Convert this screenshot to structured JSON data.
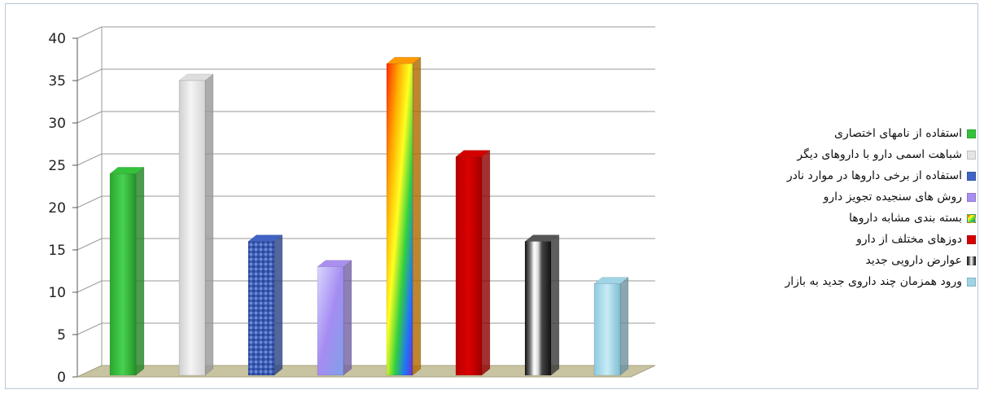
{
  "chart_data": {
    "type": "bar",
    "style": "3d-columns",
    "ylim": [
      0,
      40
    ],
    "yticks": [
      0,
      5,
      10,
      15,
      20,
      25,
      30,
      35,
      40
    ],
    "grid": true,
    "legend_position": "right",
    "series": [
      {
        "name": "استفاده از نامهای اختصاری",
        "value": 24,
        "color": "#33c23a",
        "icon": "green-swatch"
      },
      {
        "name": "شباهت اسمی دارو با داروهای دیگر",
        "value": 35,
        "color": "#dedede",
        "icon": "marble-swatch"
      },
      {
        "name": "استفاده از برخی داروها در موارد نادر",
        "value": 16,
        "color": "#3f63c4",
        "icon": "blue-pattern-swatch"
      },
      {
        "name": "روش های سنجیده تجویز دارو",
        "value": 13,
        "color": "#a98ff0",
        "icon": "lavender-swatch"
      },
      {
        "name": "بسته بندی مشابه داروها",
        "value": 37,
        "color": "#ff9a00",
        "icon": "rainbow-swatch"
      },
      {
        "name": "دوزهای مختلف از دارو",
        "value": 26,
        "color": "#d40000",
        "icon": "red-swatch"
      },
      {
        "name": "عوارض دارویی جدید",
        "value": 16,
        "color": "#555555",
        "icon": "black-white-swatch"
      },
      {
        "name": "ورود همزمان چند داروی جدید به بازار",
        "value": 11,
        "color": "#9fd4e6",
        "icon": "light-blue-swatch"
      }
    ]
  }
}
